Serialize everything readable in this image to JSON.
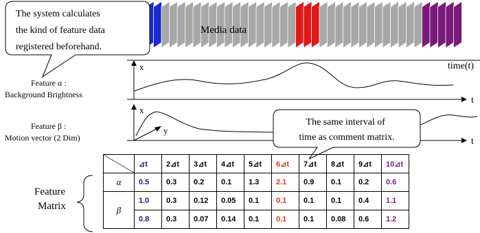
{
  "callouts": [
    {
      "lines": [
        "The system calculates",
        "the kind of feature data",
        "registered beforehand."
      ]
    },
    {
      "lines": [
        "The same interval of",
        "time as comment matrix."
      ]
    }
  ],
  "media_label": "Media data",
  "timeline_label": "time(t)",
  "feature_alpha": {
    "name": "Feature α :",
    "description": "Background Brightness",
    "x_label": "x",
    "t_label": "t"
  },
  "feature_beta": {
    "name": "Feature β :",
    "description": "Motion vector (2 Dim)",
    "x_label": "x",
    "y_label": "y",
    "t_label": "t"
  },
  "matrix": {
    "label": [
      "Feature",
      "Matrix"
    ],
    "header": [
      "⊿t",
      "2⊿t",
      "3⊿t",
      "4⊿t",
      "5⊿t",
      "6⊿t",
      "7⊿t",
      "8⊿t",
      "9⊿t",
      "10⊿t"
    ],
    "rows": [
      {
        "label": "α",
        "values": [
          [
            "0.5",
            "0.3",
            "0.2",
            "0.1",
            "1.3",
            "2.1",
            "0.9",
            "0.1",
            "0.2",
            "0.6"
          ]
        ]
      },
      {
        "label": "β",
        "values": [
          [
            "1.0",
            "0.3",
            "0.12",
            "0.05",
            "0.1",
            "0.1",
            "0.1",
            "0.1",
            "0.4",
            "1.1"
          ],
          [
            "0.8",
            "0.3",
            "0.07",
            "0.14",
            "0.1",
            "0.1",
            "0.1",
            "0.08",
            "0.6",
            "1.2"
          ]
        ]
      }
    ]
  }
}
